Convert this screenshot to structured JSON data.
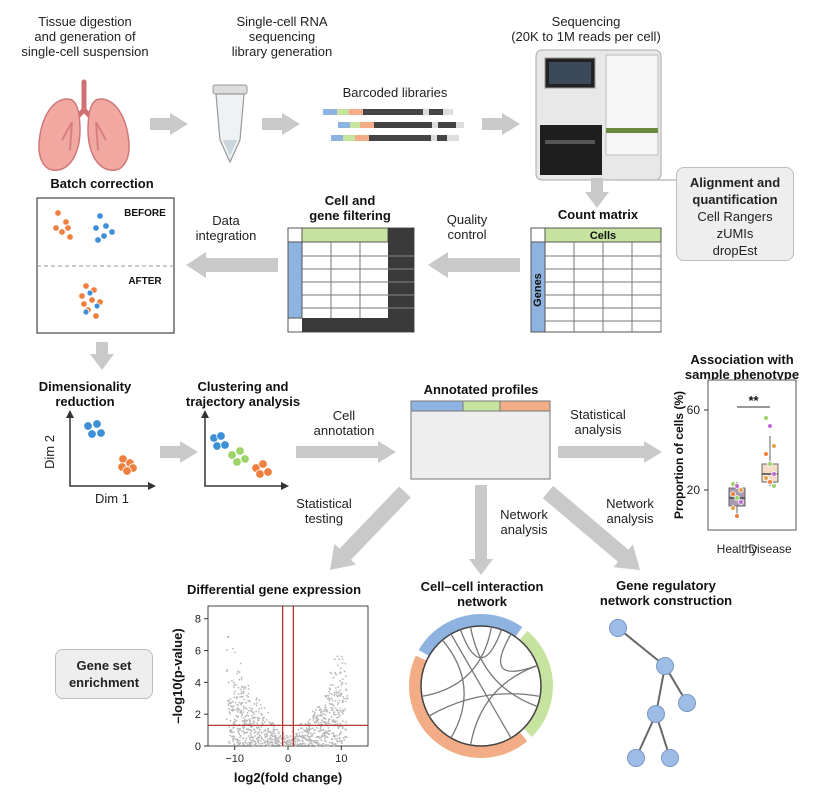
{
  "steps": {
    "tissue": "Tissue digestion\nand generation of\nsingle-cell suspension",
    "library": "Single-cell RNA\nsequencing\nlibrary generation",
    "barcoded": "Barcoded libraries",
    "sequencing": "Sequencing\n(20K to 1M reads per cell)",
    "alignment_title": "Alignment and\nquantification",
    "alignment_tools": [
      "Cell Rangers",
      "zUMIs",
      "dropEst"
    ],
    "count_matrix": "Count matrix",
    "cells": "Cells",
    "genes": "Genes",
    "quality_control": "Quality\ncontrol",
    "cell_gene_filtering": "Cell and\ngene filtering",
    "data_integration": "Data\nintegration",
    "batch_correction": "Batch correction",
    "before": "BEFORE",
    "after": "AFTER",
    "dim_reduction": "Dimensionality\nreduction",
    "dim1": "Dim 1",
    "dim2": "Dim 2",
    "clustering": "Clustering and\ntrajectory analysis",
    "cell_annotation": "Cell\nannotation",
    "annotated_profiles": "Annotated profiles",
    "statistical_analysis": "Statistical\nanalysis",
    "association": "Association with\nsample phenotype",
    "statistical_testing": "Statistical\ntesting",
    "network_analysis_1": "Network\nanalysis",
    "network_analysis_2": "Network\nanalysis",
    "dge_title": "Differential gene expression",
    "cci_title": "Cell–cell interaction\nnetwork",
    "grn_title": "Gene regulatory\nnetwork construction",
    "gene_set": "Gene set\nenrichment"
  },
  "colors": {
    "blue": "#8fb3e0",
    "green": "#c6e3a0",
    "orange": "#f2ad86",
    "cluster_blue": "#3d8fd6",
    "cluster_orange": "#ef7f3f",
    "cluster_green": "#9ed36a",
    "arrow_gray": "#c9c9c9",
    "red_line": "#b32020",
    "node_blue": "#9ebde6"
  },
  "box_chart": {
    "type": "box",
    "ylabel": "Proportion of cells (%)",
    "yticks": [
      20,
      60
    ],
    "categories": [
      "Healthy",
      "Disease"
    ],
    "significance": "**",
    "boxes": [
      {
        "name": "Healthy",
        "q1": 12,
        "median": 16,
        "q3": 21,
        "whisker_low": 7,
        "whisker_high": 24,
        "points": [
          23,
          22,
          20,
          18,
          16,
          14,
          11,
          7
        ]
      },
      {
        "name": "Disease",
        "q1": 24,
        "median": 28,
        "q3": 33,
        "whisker_low": 22,
        "whisker_high": 47,
        "points": [
          56,
          52,
          42,
          38,
          33,
          28,
          26,
          24,
          22
        ]
      }
    ]
  },
  "volcano": {
    "type": "scatter",
    "xlabel": "log2(fold change)",
    "ylabel": "–log10(p-value)",
    "xticks": [
      -10,
      0,
      10
    ],
    "yticks": [
      0,
      2,
      4,
      6,
      8
    ],
    "xlim": [
      -15,
      15
    ],
    "ylim": [
      0,
      8.8
    ],
    "vlines": [
      -1,
      1
    ],
    "hline": 1.3
  }
}
